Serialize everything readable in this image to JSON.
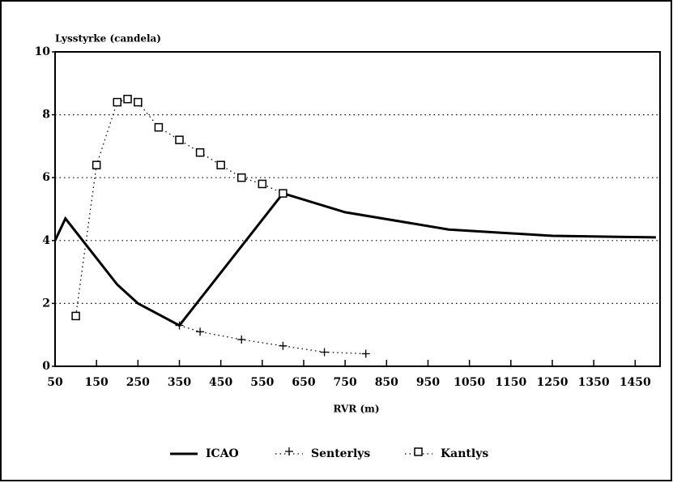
{
  "chart_data": {
    "type": "line",
    "y_label": "Lysstyrke (candela)",
    "x_label": "RVR (m)",
    "xlim": [
      50,
      1510
    ],
    "ylim": [
      0,
      10
    ],
    "xticks": [
      50,
      150,
      250,
      350,
      450,
      550,
      650,
      750,
      850,
      950,
      1050,
      1150,
      1250,
      1350,
      1450
    ],
    "yticks": [
      0,
      2,
      4,
      6,
      8,
      10
    ],
    "grid": true,
    "legend": "bottom",
    "series": [
      {
        "name": "ICAO",
        "color": "#000000",
        "style": "solid",
        "marker": "none",
        "x": [
          50,
          75,
          200,
          250,
          350,
          600,
          750,
          1000,
          1250,
          1500
        ],
        "values": [
          4.0,
          4.7,
          2.6,
          2.0,
          1.3,
          5.5,
          4.9,
          4.35,
          4.15,
          4.1
        ]
      },
      {
        "name": "Senterlys",
        "color": "#000000",
        "style": "dotted",
        "marker": "plus",
        "x": [
          350,
          400,
          500,
          600,
          700,
          800
        ],
        "values": [
          1.3,
          1.1,
          0.85,
          0.65,
          0.45,
          0.4
        ]
      },
      {
        "name": "Kantlys",
        "color": "#000000",
        "style": "dotted",
        "marker": "square",
        "x": [
          100,
          150,
          200,
          225,
          250,
          300,
          350,
          400,
          450,
          500,
          550,
          600
        ],
        "values": [
          1.6,
          6.4,
          8.4,
          8.5,
          8.4,
          7.6,
          7.2,
          6.8,
          6.4,
          6.0,
          5.8,
          5.5
        ]
      }
    ]
  }
}
